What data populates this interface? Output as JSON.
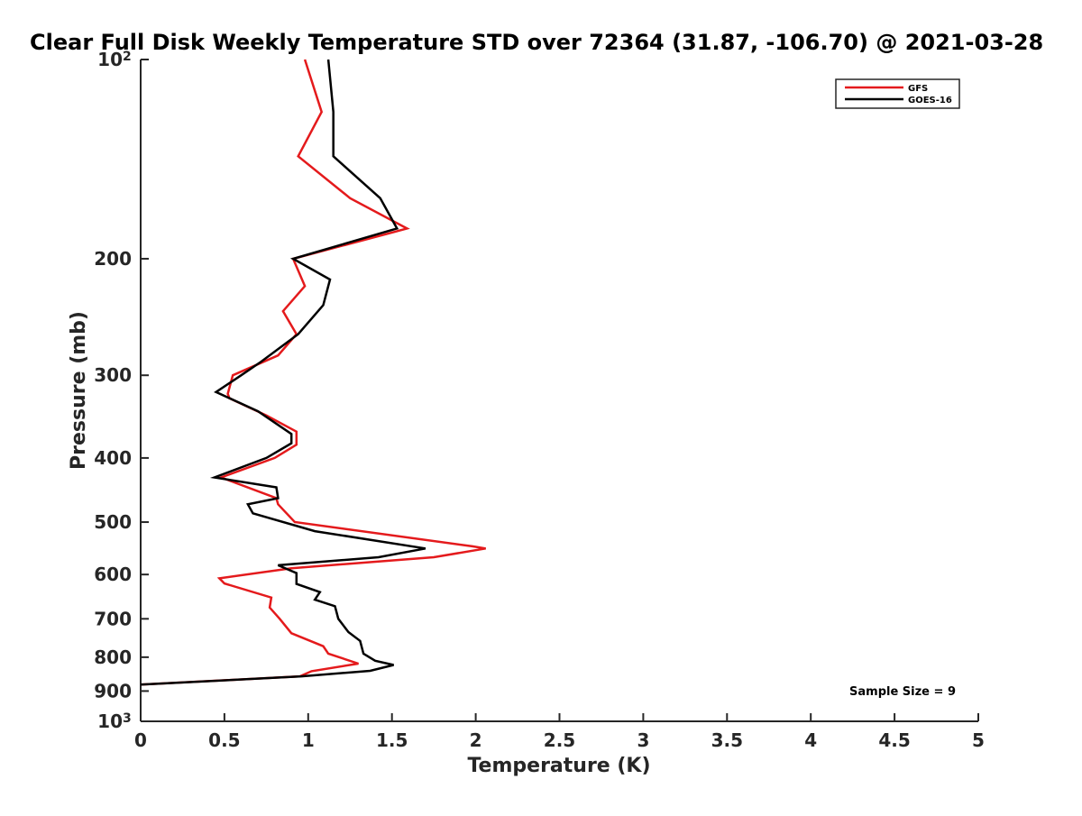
{
  "chart_data": {
    "type": "line",
    "title": "Clear Full Disk Weekly Temperature STD over 72364 (31.87, -106.70) @ 2021-03-28",
    "xlabel": "Temperature (K)",
    "ylabel": "Pressure (mb)",
    "xlim": [
      0,
      5
    ],
    "ylim": [
      100,
      1000
    ],
    "yscale": "log",
    "y_reversed": true,
    "x_ticks": [
      "0",
      "0.5",
      "1",
      "1.5",
      "2",
      "2.5",
      "3",
      "3.5",
      "4",
      "4.5",
      "5"
    ],
    "y_ticks": [
      {
        "value": 100,
        "label": "10",
        "sup": "2"
      },
      {
        "value": 200,
        "label": "200",
        "sup": ""
      },
      {
        "value": 300,
        "label": "300",
        "sup": ""
      },
      {
        "value": 400,
        "label": "400",
        "sup": ""
      },
      {
        "value": 500,
        "label": "500",
        "sup": ""
      },
      {
        "value": 600,
        "label": "600",
        "sup": ""
      },
      {
        "value": 700,
        "label": "700",
        "sup": ""
      },
      {
        "value": 800,
        "label": "800",
        "sup": ""
      },
      {
        "value": 900,
        "label": "900",
        "sup": ""
      },
      {
        "value": 1000,
        "label": "10",
        "sup": "3"
      }
    ],
    "grid": false,
    "legend_position": "top-right",
    "annotation": "Sample Size = 9",
    "series": [
      {
        "name": "GFS",
        "color": "#e41a1c",
        "x": [
          0.98,
          1.08,
          0.94,
          1.25,
          1.59,
          1.52,
          0.91,
          0.98,
          0.85,
          0.93,
          0.82,
          0.55,
          0.52,
          0.53,
          0.75,
          0.93,
          0.93,
          0.8,
          0.48,
          0.81,
          0.82,
          0.92,
          1.98,
          2.06,
          1.75,
          0.9,
          0.47,
          0.5,
          0.78,
          0.77,
          0.83,
          0.9,
          1.09,
          1.12,
          1.3,
          1.02,
          0.95,
          0.0
        ],
        "y": [
          100,
          120,
          140,
          162,
          180,
          182,
          200,
          220,
          240,
          260,
          280,
          300,
          320,
          325,
          345,
          365,
          382,
          400,
          428,
          460,
          470,
          500,
          544,
          548,
          565,
          587,
          608,
          619,
          650,
          673,
          700,
          736,
          770,
          790,
          818,
          840,
          855,
          880
        ]
      },
      {
        "name": "GOES-16",
        "color": "#000000",
        "x": [
          1.12,
          1.15,
          1.15,
          1.15,
          1.43,
          1.53,
          0.91,
          1.13,
          1.09,
          0.94,
          0.72,
          0.6,
          0.45,
          0.7,
          0.9,
          0.9,
          0.75,
          0.44,
          0.81,
          0.82,
          0.64,
          0.67,
          1.04,
          1.7,
          1.42,
          0.82,
          0.93,
          0.93,
          1.07,
          1.04,
          1.16,
          1.18,
          1.24,
          1.31,
          1.33,
          1.4,
          1.51,
          1.37,
          0.96,
          0.0
        ],
        "y": [
          100,
          120,
          125,
          140,
          162,
          180,
          200,
          215,
          235,
          260,
          286,
          300,
          318,
          340,
          368,
          380,
          400,
          428,
          443,
          460,
          470,
          485,
          516,
          548,
          565,
          581,
          597,
          620,
          638,
          655,
          670,
          700,
          733,
          756,
          790,
          810,
          822,
          839,
          855,
          880
        ]
      }
    ]
  }
}
